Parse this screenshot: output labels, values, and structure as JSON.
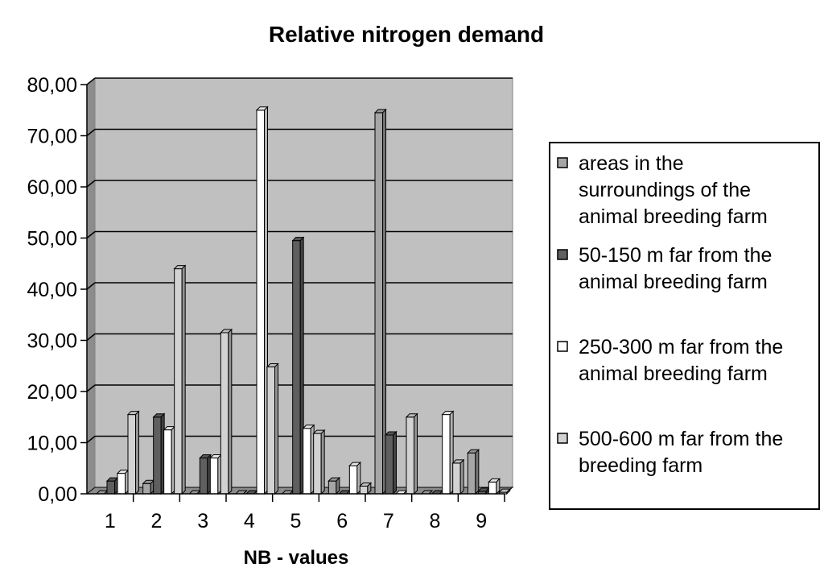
{
  "chart_data": {
    "type": "bar",
    "title": "Relative nitrogen demand",
    "xlabel": "NB - values",
    "ylabel": "",
    "categories": [
      "1",
      "2",
      "3",
      "4",
      "5",
      "6",
      "7",
      "8",
      "9"
    ],
    "y_tick_labels": [
      "0,00",
      "10,00",
      "20,00",
      "30,00",
      "40,00",
      "50,00",
      "60,00",
      "70,00",
      "80,00"
    ],
    "ylim": [
      0,
      80
    ],
    "grid": true,
    "legend_position": "right",
    "series": [
      {
        "name": "areas in the surroundings of the animal breeding farm",
        "legend_lines": [
          "areas in the",
          "surroundings of the",
          "animal breeding farm"
        ],
        "color": "#a6a6a6",
        "values": [
          0,
          2.0,
          0,
          0,
          0,
          2.5,
          74.5,
          0,
          8.0
        ]
      },
      {
        "name": "50-150 m far from the animal breeding farm",
        "legend_lines": [
          "50-150 m far from the",
          "animal breeding farm"
        ],
        "color": "#5f5f5f",
        "values": [
          2.5,
          15.0,
          7.0,
          0,
          49.5,
          0,
          11.5,
          0,
          0.5
        ]
      },
      {
        "name": "250-300 m far from the animal breeding farm",
        "legend_lines": [
          "250-300 m far from the",
          "animal breeding farm"
        ],
        "color": "#ffffff",
        "values": [
          4.0,
          12.5,
          7.0,
          75.0,
          12.8,
          5.5,
          0,
          15.5,
          2.3
        ]
      },
      {
        "name": "500-600 m far from the breeding farm",
        "legend_lines": [
          "500-600 m far from the",
          "breeding farm"
        ],
        "color": "#d2d2d2",
        "values": [
          15.5,
          44.0,
          31.5,
          24.8,
          11.8,
          1.5,
          15.0,
          6.0,
          0.3
        ]
      }
    ]
  },
  "colors": {
    "plot_background": "#c0c0c0",
    "gridline": "#000000"
  }
}
